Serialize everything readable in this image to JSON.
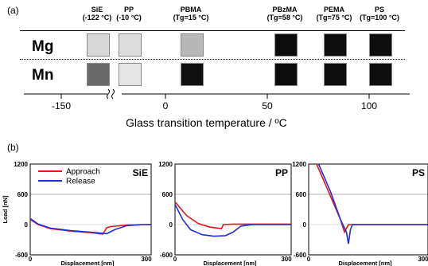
{
  "panel_a": {
    "label": "(a)",
    "materials": [
      {
        "name": "SiE",
        "tg": "(-122 °C)",
        "mg_color": "#d8d8d8",
        "mn_color": "#6a6a6a"
      },
      {
        "name": "PP",
        "tg": "(-10 °C)",
        "mg_color": "#dcdcdc",
        "mn_color": "#e4e4e4"
      },
      {
        "name": "PBMA",
        "tg": "(Tg=15 °C)",
        "mg_color": "#b8b8b8",
        "mn_color": "#101010"
      },
      {
        "name": "PBzMA",
        "tg": "(Tg=58 °C)",
        "mg_color": "#0c0c0c",
        "mn_color": "#0c0c0c"
      },
      {
        "name": "PEMA",
        "tg": "(Tg=75 °C)",
        "mg_color": "#0e0e0e",
        "mn_color": "#0e0e0e"
      },
      {
        "name": "PS",
        "tg": "(Tg=100 °C)",
        "mg_color": "#0e0e0e",
        "mn_color": "#0e0e0e"
      }
    ],
    "rows": [
      "Mg",
      "Mn"
    ],
    "axis_ticks": [
      "-150",
      "0",
      "50",
      "100"
    ],
    "axis_title": "Glass transition temperature / ºC"
  },
  "panel_b": {
    "label": "(b)",
    "ylabel": "Load [nN]",
    "xlabel": "Displacement [nm]",
    "legend": [
      "Approach",
      "Release"
    ],
    "colors": {
      "approach": "#e8141e",
      "release": "#1e2fd6",
      "grid": "#999999"
    }
  },
  "chart_data": [
    {
      "type": "line",
      "title": "SiE",
      "xlabel": "Displacement [nm]",
      "ylabel": "Load [nN]",
      "xlim": [
        0,
        300
      ],
      "ylim": [
        -600,
        1200
      ],
      "xticks": [
        "0",
        "300"
      ],
      "yticks": [
        "1200",
        "600",
        "0",
        "-600"
      ],
      "legend": "top-left",
      "series": [
        {
          "name": "Approach",
          "x": [
            0,
            20,
            50,
            100,
            150,
            180,
            190,
            200,
            240,
            280,
            300
          ],
          "y": [
            100,
            0,
            -80,
            -130,
            -160,
            -190,
            -60,
            -40,
            -10,
            0,
            0
          ]
        },
        {
          "name": "Release",
          "x": [
            0,
            20,
            50,
            100,
            150,
            190,
            210,
            240,
            280,
            300
          ],
          "y": [
            120,
            10,
            -70,
            -120,
            -150,
            -180,
            -100,
            -20,
            0,
            0
          ]
        }
      ]
    },
    {
      "type": "line",
      "title": "PP",
      "xlabel": "Displacement [nm]",
      "xlim": [
        0,
        300
      ],
      "ylim": [
        -600,
        1200
      ],
      "xticks": [
        "0",
        "300"
      ],
      "yticks": [
        "1200",
        "600",
        "0",
        "-600"
      ],
      "series": [
        {
          "name": "Approach",
          "x": [
            0,
            30,
            60,
            90,
            120,
            125,
            150,
            200,
            300
          ],
          "y": [
            450,
            180,
            20,
            -50,
            -80,
            0,
            10,
            10,
            10
          ]
        },
        {
          "name": "Release",
          "x": [
            0,
            20,
            40,
            70,
            100,
            130,
            150,
            170,
            200,
            300
          ],
          "y": [
            400,
            100,
            -100,
            -200,
            -230,
            -220,
            -150,
            -30,
            0,
            0
          ]
        }
      ]
    },
    {
      "type": "line",
      "title": "PS",
      "xlabel": "Displacement [nm]",
      "xlim": [
        0,
        300
      ],
      "ylim": [
        -600,
        1200
      ],
      "xticks": [
        "0",
        "300"
      ],
      "yticks": [
        "1200",
        "600",
        "0",
        "-600"
      ],
      "series": [
        {
          "name": "Approach",
          "x": [
            20,
            50,
            80,
            90,
            100,
            150,
            300
          ],
          "y": [
            1200,
            650,
            100,
            -150,
            0,
            0,
            0
          ]
        },
        {
          "name": "Release",
          "x": [
            25,
            55,
            80,
            95,
            100,
            105,
            110,
            150,
            300
          ],
          "y": [
            1200,
            650,
            100,
            -150,
            -380,
            -100,
            0,
            0,
            0
          ]
        }
      ]
    }
  ]
}
